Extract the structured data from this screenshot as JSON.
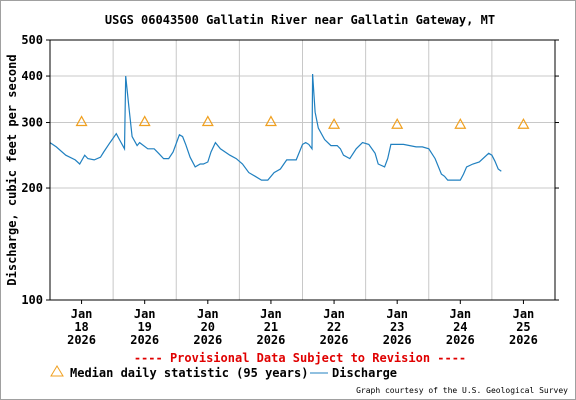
{
  "chart_data": {
    "type": "line",
    "title": "USGS 06043500 Gallatin River near Gallatin Gateway, MT",
    "ylabel": "Discharge, cubic feet per second",
    "y_scale": "log",
    "ylim": [
      100,
      500
    ],
    "y_ticks": [
      100,
      200,
      300,
      400,
      500
    ],
    "y_tick_labels": [
      "100",
      "200",
      "300",
      "400",
      "500"
    ],
    "xlim": [
      17.5,
      25.5
    ],
    "x_ticks": [
      18,
      19,
      20,
      21,
      22,
      23,
      24,
      25
    ],
    "x_tick_labels": [
      {
        "month": "Jan",
        "day": "18",
        "year": "2026"
      },
      {
        "month": "Jan",
        "day": "19",
        "year": "2026"
      },
      {
        "month": "Jan",
        "day": "20",
        "year": "2026"
      },
      {
        "month": "Jan",
        "day": "21",
        "year": "2026"
      },
      {
        "month": "Jan",
        "day": "22",
        "year": "2026"
      },
      {
        "month": "Jan",
        "day": "23",
        "year": "2026"
      },
      {
        "month": "Jan",
        "day": "24",
        "year": "2026"
      },
      {
        "month": "Jan",
        "day": "25",
        "year": "2026"
      }
    ],
    "grid": true,
    "series": [
      {
        "name": "Median daily statistic (95 years)",
        "type": "scatter",
        "marker": "triangle",
        "color": "#f0a020",
        "x": [
          18,
          19,
          20,
          21,
          22,
          23,
          24,
          25
        ],
        "y": [
          300,
          300,
          300,
          300,
          295,
          295,
          295,
          295
        ]
      },
      {
        "name": "Discharge",
        "type": "line",
        "color": "#2080c0",
        "x": [
          17.5,
          17.6,
          17.75,
          17.9,
          17.97,
          18.05,
          18.1,
          18.2,
          18.3,
          18.35,
          18.45,
          18.55,
          18.6,
          18.68,
          18.7,
          18.75,
          18.8,
          18.88,
          18.92,
          19.05,
          19.15,
          19.22,
          19.3,
          19.38,
          19.45,
          19.55,
          19.6,
          19.65,
          19.72,
          19.8,
          19.88,
          19.93,
          20.0,
          20.05,
          20.12,
          20.2,
          20.35,
          20.45,
          20.55,
          20.65,
          20.75,
          20.85,
          20.95,
          21.05,
          21.15,
          21.25,
          21.3,
          21.4,
          21.5,
          21.55,
          21.6,
          21.65,
          21.66,
          21.7,
          21.75,
          21.85,
          21.95,
          22.05,
          22.1,
          22.15,
          22.25,
          22.35,
          22.45,
          22.55,
          22.65,
          22.7,
          22.8,
          22.85,
          22.9,
          22.95,
          23.0,
          23.1,
          23.2,
          23.3,
          23.4,
          23.5,
          23.6,
          23.7,
          23.75,
          23.8,
          23.85,
          23.95,
          24.0,
          24.05,
          24.1,
          24.2,
          24.3,
          24.45,
          24.5,
          24.55,
          24.6,
          24.65
        ],
        "y": [
          265,
          258,
          245,
          238,
          232,
          245,
          240,
          238,
          242,
          250,
          265,
          280,
          270,
          255,
          400,
          330,
          275,
          260,
          265,
          255,
          255,
          248,
          240,
          240,
          250,
          278,
          275,
          262,
          242,
          228,
          232,
          232,
          235,
          250,
          265,
          255,
          245,
          240,
          232,
          220,
          215,
          210,
          210,
          220,
          225,
          238,
          238,
          238,
          262,
          265,
          262,
          255,
          405,
          320,
          290,
          270,
          260,
          260,
          255,
          245,
          240,
          255,
          265,
          262,
          248,
          232,
          228,
          240,
          262,
          262,
          262,
          262,
          260,
          258,
          258,
          255,
          240,
          218,
          215,
          210,
          210,
          210,
          210,
          218,
          228,
          232,
          235,
          248,
          245,
          236,
          225,
          222
        ]
      }
    ],
    "legend_position": "bottom"
  },
  "provisional_text": "---- Provisional Data Subject to Revision ----",
  "credit_text": "Graph courtesy of the U.S. Geological Survey"
}
